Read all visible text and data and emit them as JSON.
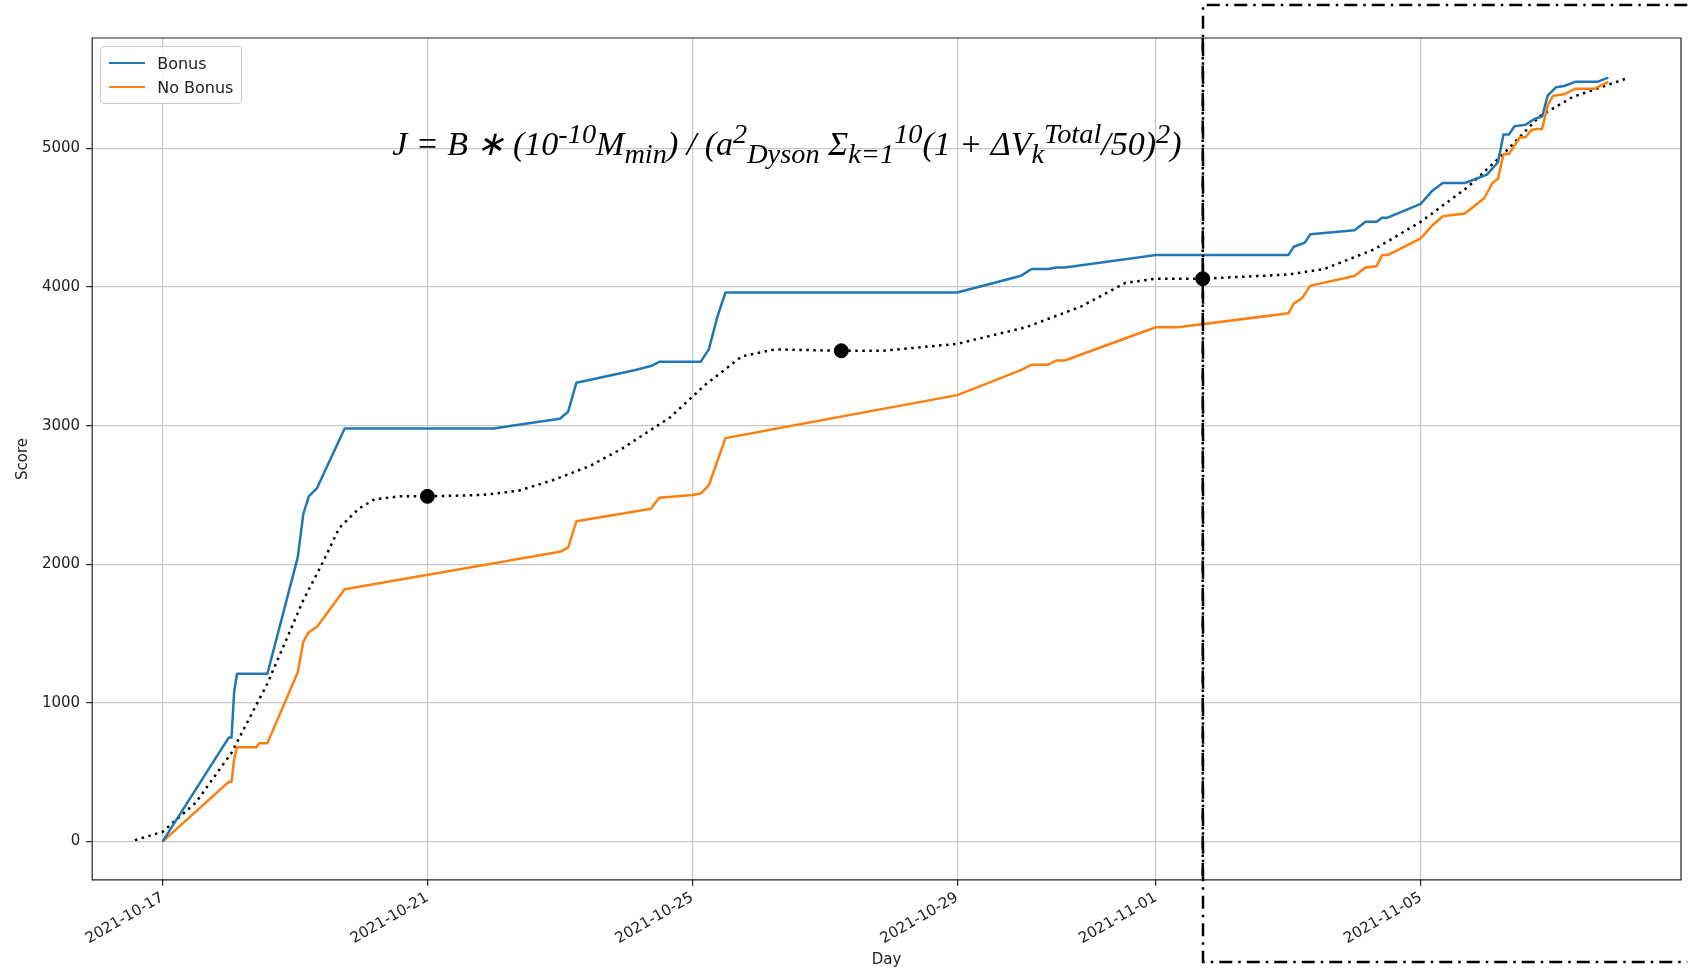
{
  "chart_data": {
    "type": "line",
    "xlabel": "Day",
    "ylabel": "Score",
    "annotations": [
      "J = B ∗ (10$^{-10}$M$_{min}$) / (a$^{2}$$_{Dyson}$ Σ$_{k=1}$$^{10}$(1 + ΔV$_{k}$$^{Total}$/50)$^{2}$)"
    ],
    "xlim": [
      "2021-10-15T22:30",
      "2021-11-08T22:20"
    ],
    "xticks": [
      "2021-10-17",
      "2021-10-21",
      "2021-10-25",
      "2021-10-29",
      "2021-11-01",
      "2021-11-05"
    ],
    "ylim": [
      -276,
      5796
    ],
    "yticks": [
      0,
      1000,
      2000,
      3000,
      4000,
      5000
    ],
    "grid": true,
    "legend": "top left",
    "marker": "none",
    "line_style": "solid",
    "ref_lines": [
      {
        "axis": "x",
        "value": "2021-11-01T17:00",
        "color": "#000000",
        "line_style": "dashed"
      }
    ],
    "series": [
      {
        "name": "Bonus",
        "color": "#1f77b4",
        "x": [
          "2021-10-17T00:00",
          "2021-10-18T00:00",
          "2021-10-18T01:00",
          "2021-10-18T02:00",
          "2021-10-18T03:00",
          "2021-10-18T14:00",
          "2021-10-19T01:00",
          "2021-10-19T03:00",
          "2021-10-19T05:00",
          "2021-10-19T08:00",
          "2021-10-19T18:00",
          "2021-10-22T00:00",
          "2021-10-23T00:00",
          "2021-10-23T03:00",
          "2021-10-23T06:00",
          "2021-10-24T03:00",
          "2021-10-24T09:00",
          "2021-10-24T12:00",
          "2021-10-25T03:00",
          "2021-10-25T06:00",
          "2021-10-25T09:00",
          "2021-10-25T12:00",
          "2021-10-29T00:00",
          "2021-10-29T23:00",
          "2021-10-30T03:00",
          "2021-10-30T09:00",
          "2021-10-30T12:00",
          "2021-10-30T15:00",
          "2021-11-01T00:00",
          "2021-11-03T00:00",
          "2021-11-03T02:00",
          "2021-11-03T06:00",
          "2021-11-03T08:00",
          "2021-11-04T00:00",
          "2021-11-04T04:00",
          "2021-11-04T08:00",
          "2021-11-04T10:00",
          "2021-11-04T12:00",
          "2021-11-05T00:00",
          "2021-11-05T04:00",
          "2021-11-05T08:00",
          "2021-11-05T16:00",
          "2021-11-06T00:00",
          "2021-11-06T04:00",
          "2021-11-06T06:00",
          "2021-11-06T08:00",
          "2021-11-06T10:00",
          "2021-11-06T14:00",
          "2021-11-06T17:00",
          "2021-11-06T20:00",
          "2021-11-06T22:00",
          "2021-11-07T01:00",
          "2021-11-07T04:00",
          "2021-11-07T08:00",
          "2021-11-07T16:00",
          "2021-11-07T20:00"
        ],
        "values": [
          0,
          750,
          750,
          1090,
          1210,
          1210,
          2050,
          2360,
          2490,
          2550,
          2980,
          2980,
          3050,
          3100,
          3310,
          3400,
          3430,
          3460,
          3460,
          3550,
          3780,
          3960,
          3960,
          4080,
          4130,
          4130,
          4140,
          4140,
          4230,
          4230,
          4290,
          4320,
          4380,
          4410,
          4470,
          4470,
          4500,
          4500,
          4600,
          4690,
          4750,
          4750,
          4810,
          4900,
          5100,
          5100,
          5160,
          5170,
          5210,
          5230,
          5380,
          5440,
          5450,
          5480,
          5480,
          5510
        ]
      },
      {
        "name": "No Bonus",
        "color": "#ff7f0e",
        "x": [
          "2021-10-17T00:00",
          "2021-10-18T00:00",
          "2021-10-18T01:00",
          "2021-10-18T02:00",
          "2021-10-18T03:00",
          "2021-10-18T10:00",
          "2021-10-18T11:00",
          "2021-10-18T14:00",
          "2021-10-19T01:00",
          "2021-10-19T03:00",
          "2021-10-19T05:00",
          "2021-10-19T08:00",
          "2021-10-19T18:00",
          "2021-10-23T00:00",
          "2021-10-23T03:00",
          "2021-10-23T06:00",
          "2021-10-24T09:00",
          "2021-10-24T12:00",
          "2021-10-25T00:00",
          "2021-10-25T03:00",
          "2021-10-25T06:00",
          "2021-10-25T12:00",
          "2021-10-29T00:00",
          "2021-10-29T23:00",
          "2021-10-30T03:00",
          "2021-10-30T09:00",
          "2021-10-30T12:00",
          "2021-10-30T15:00",
          "2021-11-01T00:00",
          "2021-11-01T08:00",
          "2021-11-03T00:00",
          "2021-11-03T02:00",
          "2021-11-03T05:00",
          "2021-11-03T08:00",
          "2021-11-04T00:00",
          "2021-11-04T04:00",
          "2021-11-04T08:00",
          "2021-11-04T10:00",
          "2021-11-04T12:00",
          "2021-11-05T00:00",
          "2021-11-05T04:00",
          "2021-11-05T08:00",
          "2021-11-05T16:00",
          "2021-11-05T23:00",
          "2021-11-06T02:00",
          "2021-11-06T04:00",
          "2021-11-06T06:00",
          "2021-11-06T08:00",
          "2021-11-06T12:00",
          "2021-11-06T14:00",
          "2021-11-06T16:00",
          "2021-11-06T18:00",
          "2021-11-06T20:00",
          "2021-11-06T22:00",
          "2021-11-07T00:00",
          "2021-11-07T04:00",
          "2021-11-07T08:00",
          "2021-11-07T15:00",
          "2021-11-07T20:00"
        ],
        "values": [
          0,
          430,
          430,
          600,
          680,
          680,
          710,
          710,
          1220,
          1440,
          1510,
          1550,
          1820,
          2090,
          2120,
          2310,
          2400,
          2480,
          2500,
          2510,
          2570,
          2910,
          3220,
          3400,
          3440,
          3440,
          3470,
          3470,
          3710,
          3710,
          3810,
          3880,
          3920,
          4010,
          4080,
          4140,
          4150,
          4230,
          4230,
          4350,
          4440,
          4510,
          4530,
          4640,
          4750,
          4780,
          4960,
          4960,
          5080,
          5080,
          5130,
          5140,
          5140,
          5310,
          5380,
          5390,
          5430,
          5430,
          5480
        ]
      },
      {
        "type": "line",
        "color": "#000000",
        "line_style": "dotted",
        "marker": "none",
        "x": [
          "2021-10-16T14:00",
          "2021-10-17T00:00",
          "2021-10-17T12:00",
          "2021-10-18T01:00",
          "2021-10-18T14:00",
          "2021-10-19T03:00",
          "2021-10-19T10:00",
          "2021-10-19T16:00",
          "2021-10-19T23:00",
          "2021-10-20T05:00",
          "2021-10-20T14:00",
          "2021-10-21T00:00",
          "2021-10-21T20:00",
          "2021-10-22T09:00",
          "2021-10-22T22:00",
          "2021-10-23T11:00",
          "2021-10-23T23:00",
          "2021-10-24T16:00",
          "2021-10-25T05:00",
          "2021-10-25T18:00",
          "2021-10-26T06:00",
          "2021-10-27T06:00",
          "2021-10-27T21:00",
          "2021-10-29T00:00",
          "2021-10-30T01:00",
          "2021-10-30T21:00",
          "2021-10-31T13:00",
          "2021-11-01T00:00",
          "2021-11-01T17:00",
          "2021-11-03T00:00",
          "2021-11-03T13:00",
          "2021-11-04T07:00",
          "2021-11-05T00:00",
          "2021-11-05T17:00",
          "2021-11-06T06:00",
          "2021-11-06T19:00",
          "2021-11-07T07:00",
          "2021-11-08T02:00"
        ],
        "values": [
          10,
          70,
          280,
          640,
          1140,
          1740,
          2010,
          2260,
          2400,
          2470,
          2490,
          2490,
          2500,
          2530,
          2610,
          2710,
          2840,
          3060,
          3300,
          3500,
          3550,
          3540,
          3540,
          3590,
          3710,
          3860,
          4030,
          4060,
          4060,
          4090,
          4130,
          4270,
          4470,
          4720,
          4960,
          5230,
          5370,
          5500
        ]
      },
      {
        "type": "scatter",
        "color": "#000000",
        "marker": "circle",
        "x": [
          "2021-10-21T00:00",
          "2021-10-27T06:00",
          "2021-11-01T17:00"
        ],
        "values": [
          2490,
          3540,
          4060
        ]
      }
    ]
  }
}
